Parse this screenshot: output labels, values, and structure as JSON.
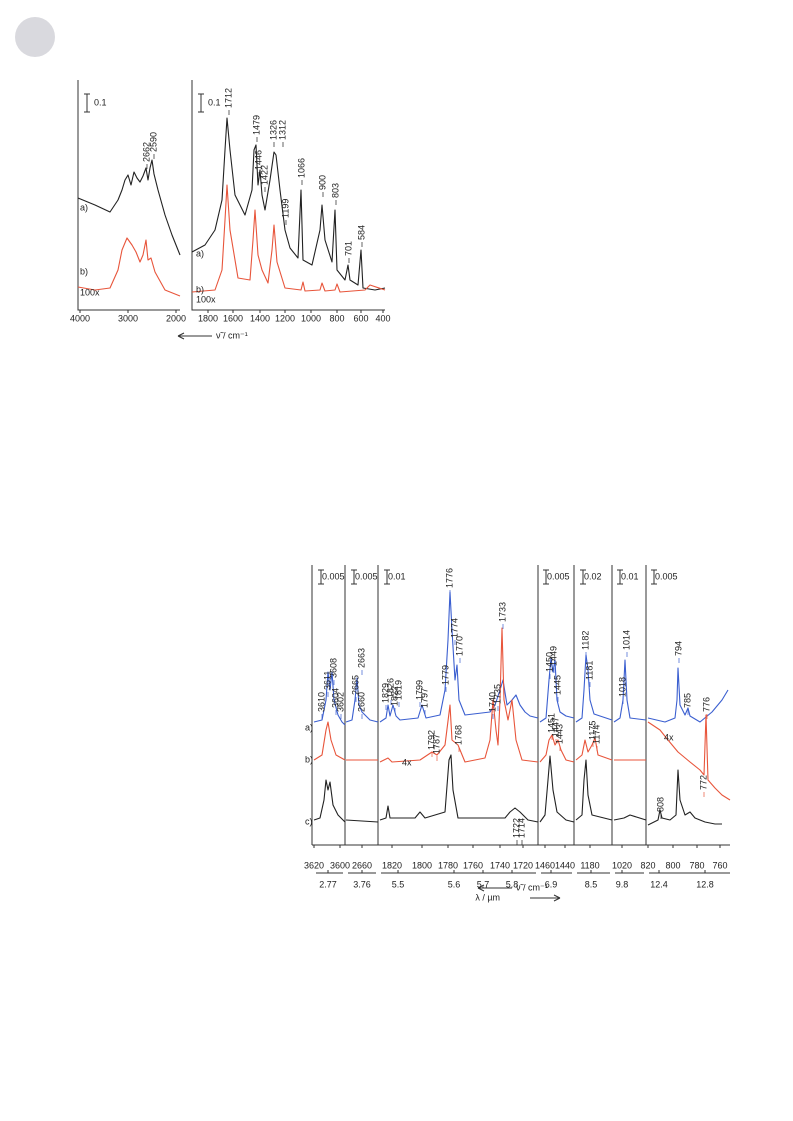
{
  "figure1": {
    "scale_bars": [
      "0.1",
      "0.1"
    ],
    "x_ticks_left": [
      "4000",
      "3000",
      "2000"
    ],
    "x_ticks_right": [
      "1800",
      "1600",
      "1400",
      "1200",
      "1000",
      "800",
      "600",
      "400"
    ],
    "axis_label": "ν̃ / cm⁻¹",
    "trace_labels_left": [
      "a)",
      "b)"
    ],
    "trace_labels_right": [
      "a)",
      "b)"
    ],
    "factors": [
      "100x",
      "100x"
    ],
    "peaks_left": [
      "2662",
      "2590"
    ],
    "peaks_right": [
      "1712",
      "1479",
      "1446",
      "1422",
      "1326",
      "1312",
      "1199",
      "1066",
      "900",
      "803",
      "701",
      "584"
    ]
  },
  "figure2": {
    "scale_bars": [
      "0.005",
      "0.005",
      "0.01",
      "0.005",
      "0.02",
      "0.01",
      "0.005"
    ],
    "x_ticks": [
      "3620",
      "3600",
      "2660",
      "1820",
      "1800",
      "1780",
      "1760",
      "1740",
      "1720",
      "1460",
      "1440",
      "1180",
      "1020",
      "820",
      "800",
      "780",
      "760"
    ],
    "axis_label": "ν̃ / cm⁻¹",
    "wavelength_ticks": [
      "2.77",
      "3.76",
      "5.5",
      "5.6",
      "5.7",
      "5.8",
      "6.9",
      "8.5",
      "9.8",
      "12.4",
      "12.8"
    ],
    "wavelength_label": "λ / µm",
    "trace_labels": [
      "a)",
      "b)",
      "c)"
    ],
    "factors": [
      "4x",
      "4x"
    ],
    "peaks_a": [
      "3610",
      "3611",
      "3608",
      "3604",
      "3602",
      "2665",
      "2663",
      "2660",
      "1829",
      "1826",
      "1822",
      "1819",
      "1799",
      "1797",
      "1779",
      "1776",
      "1774",
      "1770",
      "1740",
      "1735",
      "1733",
      "1450",
      "1449",
      "1445",
      "1182",
      "1181",
      "1018",
      "1014",
      "794",
      "785"
    ],
    "peaks_b": [
      "1792",
      "1787",
      "1768",
      "1451",
      "1447",
      "1443",
      "1175",
      "1174",
      "776",
      "772"
    ],
    "peaks_c": [
      "1722",
      "1714",
      "808"
    ]
  }
}
